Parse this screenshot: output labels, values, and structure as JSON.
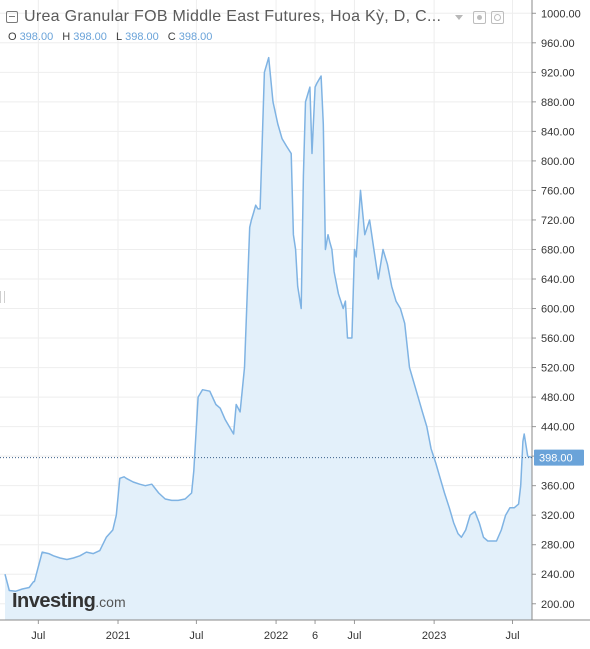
{
  "header": {
    "title": "Urea Granular FOB Middle East Futures, Hoa Kỳ, D, C...",
    "ohlc": [
      {
        "key": "O",
        "value": "398.00"
      },
      {
        "key": "H",
        "value": "398.00"
      },
      {
        "key": "L",
        "value": "398.00"
      },
      {
        "key": "C",
        "value": "398.00"
      }
    ]
  },
  "logo": {
    "main": "Investing",
    "suffix": ".com"
  },
  "colors": {
    "line": "#7fb3e3",
    "fill": "#e3f0fa",
    "price_label": "#6aa3d9",
    "grid": "#eeeeee"
  },
  "chart_data": {
    "type": "area",
    "title": "",
    "xlabel": "",
    "ylabel": "",
    "ylim": [
      178,
      1018
    ],
    "grid": true,
    "y_ticks": [
      "200.00",
      "240.00",
      "280.00",
      "320.00",
      "360.00",
      "400.00",
      "440.00",
      "480.00",
      "520.00",
      "560.00",
      "600.00",
      "640.00",
      "680.00",
      "720.00",
      "760.00",
      "800.00",
      "840.00",
      "880.00",
      "920.00",
      "960.00",
      "1000.00"
    ],
    "x_ticks": [
      "Jul",
      "2021",
      "Jul",
      "2022",
      "6",
      "Jul",
      "2023",
      "Jul"
    ],
    "x_tick_dates": [
      "2020-07-01",
      "2021-01-01",
      "2021-07-01",
      "2022-01-01",
      "2022-04-01",
      "2022-07-01",
      "2023-01-01",
      "2023-07-01"
    ],
    "x_range": [
      "2020-04-15",
      "2023-08-15"
    ],
    "last_price": "398.00",
    "last_value": 398,
    "series": [
      {
        "x": [
          "2020-04-15",
          "2020-04-25",
          "2020-05-10",
          "2020-05-25",
          "2020-06-10",
          "2020-06-20",
          "2020-06-22",
          "2020-07-10",
          "2020-07-25",
          "2020-08-05",
          "2020-08-20",
          "2020-09-05",
          "2020-09-20",
          "2020-10-05",
          "2020-10-20",
          "2020-11-05",
          "2020-11-20",
          "2020-12-05",
          "2020-12-20",
          "2020-12-28",
          "2021-01-05",
          "2021-01-15",
          "2021-01-20",
          "2021-02-05",
          "2021-02-20",
          "2021-03-05",
          "2021-03-20",
          "2021-04-05",
          "2021-04-20",
          "2021-05-05",
          "2021-05-20",
          "2021-06-05",
          "2021-06-20",
          "2021-06-25",
          "2021-07-05",
          "2021-07-15",
          "2021-08-01",
          "2021-08-15",
          "2021-08-25",
          "2021-09-05",
          "2021-09-15",
          "2021-09-25",
          "2021-10-01",
          "2021-10-10",
          "2021-10-20",
          "2021-11-01",
          "2021-11-05",
          "2021-11-10",
          "2021-11-15",
          "2021-11-20",
          "2021-11-25",
          "2021-12-05",
          "2021-12-15",
          "2021-12-25",
          "2022-01-05",
          "2022-01-15",
          "2022-01-25",
          "2022-02-05",
          "2022-02-10",
          "2022-02-15",
          "2022-02-20",
          "2022-02-28",
          "2022-03-05",
          "2022-03-10",
          "2022-03-15",
          "2022-03-20",
          "2022-03-25",
          "2022-04-01",
          "2022-04-05",
          "2022-04-10",
          "2022-04-15",
          "2022-04-20",
          "2022-04-25",
          "2022-05-01",
          "2022-05-05",
          "2022-05-10",
          "2022-05-15",
          "2022-05-25",
          "2022-06-05",
          "2022-06-10",
          "2022-06-15",
          "2022-06-25",
          "2022-07-01",
          "2022-07-05",
          "2022-07-15",
          "2022-07-25",
          "2022-08-05",
          "2022-08-15",
          "2022-08-25",
          "2022-09-05",
          "2022-09-15",
          "2022-09-25",
          "2022-10-05",
          "2022-10-15",
          "2022-10-25",
          "2022-11-05",
          "2022-11-15",
          "2022-11-25",
          "2022-12-05",
          "2022-12-15",
          "2022-12-25",
          "2023-01-05",
          "2023-01-15",
          "2023-01-25",
          "2023-02-05",
          "2023-02-15",
          "2023-02-25",
          "2023-03-05",
          "2023-03-15",
          "2023-03-25",
          "2023-04-05",
          "2023-04-15",
          "2023-04-25",
          "2023-05-05",
          "2023-05-15",
          "2023-05-25",
          "2023-06-05",
          "2023-06-15",
          "2023-06-25",
          "2023-07-05",
          "2023-07-15",
          "2023-07-20",
          "2023-07-25",
          "2023-07-28",
          "2023-08-05",
          "2023-08-15"
        ],
        "values": [
          240,
          218,
          217,
          220,
          222,
          230,
          230,
          270,
          268,
          265,
          262,
          260,
          262,
          265,
          270,
          268,
          272,
          290,
          300,
          320,
          370,
          372,
          370,
          365,
          362,
          360,
          362,
          350,
          342,
          340,
          340,
          342,
          350,
          380,
          480,
          490,
          488,
          470,
          465,
          450,
          440,
          430,
          470,
          460,
          520,
          710,
          720,
          730,
          740,
          735,
          735,
          920,
          940,
          880,
          850,
          830,
          820,
          810,
          700,
          680,
          630,
          600,
          780,
          880,
          890,
          900,
          810,
          900,
          905,
          910,
          915,
          850,
          680,
          700,
          690,
          680,
          650,
          620,
          600,
          610,
          560,
          560,
          680,
          670,
          760,
          700,
          720,
          680,
          640,
          680,
          660,
          630,
          610,
          600,
          580,
          520,
          500,
          480,
          460,
          440,
          410,
          390,
          370,
          350,
          330,
          310,
          295,
          290,
          300,
          320,
          325,
          310,
          290,
          285,
          285,
          285,
          300,
          320,
          330,
          330,
          335,
          360,
          420,
          430,
          400,
          398
        ]
      }
    ]
  }
}
